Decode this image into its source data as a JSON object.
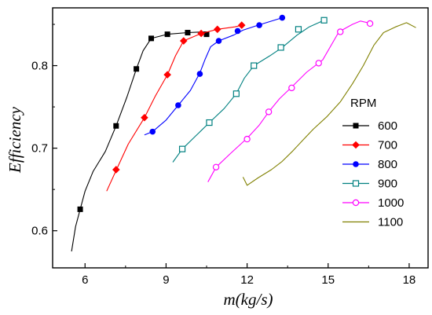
{
  "chart_data": {
    "type": "line",
    "xlabel": "m(kg/s)",
    "ylabel": "Efficiency",
    "xlim": [
      4.8,
      18.7
    ],
    "ylim": [
      0.555,
      0.87
    ],
    "xticks": [
      6,
      9,
      12,
      15,
      18
    ],
    "yticks": [
      0.6,
      0.7,
      0.8
    ],
    "xtick_labels": [
      "6",
      "9",
      "12",
      "15",
      "18"
    ],
    "ytick_labels": [
      "0.6",
      "0.7",
      "0.8"
    ],
    "legend_title": "RPM",
    "legend_position": "right",
    "series": [
      {
        "name": "600",
        "color": "#000000",
        "marker": "filled-square",
        "line": [
          [
            5.5,
            0.575
          ],
          [
            5.65,
            0.605
          ],
          [
            5.82,
            0.626
          ],
          [
            6.0,
            0.648
          ],
          [
            6.3,
            0.672
          ],
          [
            6.75,
            0.696
          ],
          [
            7.15,
            0.727
          ],
          [
            7.55,
            0.762
          ],
          [
            7.9,
            0.796
          ],
          [
            8.15,
            0.818
          ],
          [
            8.45,
            0.833
          ],
          [
            9.05,
            0.838
          ],
          [
            9.8,
            0.84
          ],
          [
            10.5,
            0.841
          ]
        ],
        "markers": [
          [
            5.82,
            0.626
          ],
          [
            7.15,
            0.727
          ],
          [
            7.9,
            0.796
          ],
          [
            8.45,
            0.833
          ],
          [
            9.05,
            0.838
          ],
          [
            9.8,
            0.84
          ],
          [
            10.5,
            0.838
          ]
        ]
      },
      {
        "name": "700",
        "color": "#ff0000",
        "marker": "filled-diamond",
        "line": [
          [
            6.8,
            0.648
          ],
          [
            7.15,
            0.673
          ],
          [
            7.6,
            0.705
          ],
          [
            8.2,
            0.737
          ],
          [
            8.6,
            0.763
          ],
          [
            9.05,
            0.789
          ],
          [
            9.35,
            0.812
          ],
          [
            9.65,
            0.83
          ],
          [
            10.3,
            0.839
          ],
          [
            10.9,
            0.844
          ],
          [
            11.55,
            0.847
          ],
          [
            11.8,
            0.849
          ]
        ],
        "markers": [
          [
            7.15,
            0.674
          ],
          [
            8.2,
            0.737
          ],
          [
            9.05,
            0.789
          ],
          [
            9.65,
            0.83
          ],
          [
            10.3,
            0.839
          ],
          [
            10.9,
            0.844
          ],
          [
            11.8,
            0.849
          ]
        ]
      },
      {
        "name": "800",
        "color": "#0000ff",
        "marker": "filled-circle",
        "line": [
          [
            8.2,
            0.716
          ],
          [
            8.5,
            0.72
          ],
          [
            9.0,
            0.734
          ],
          [
            9.45,
            0.752
          ],
          [
            9.9,
            0.77
          ],
          [
            10.25,
            0.791
          ],
          [
            10.45,
            0.808
          ],
          [
            10.65,
            0.823
          ],
          [
            10.95,
            0.83
          ],
          [
            11.5,
            0.837
          ],
          [
            11.85,
            0.843
          ],
          [
            12.4,
            0.849
          ],
          [
            13.3,
            0.858
          ]
        ],
        "markers": [
          [
            8.5,
            0.72
          ],
          [
            9.45,
            0.752
          ],
          [
            10.25,
            0.79
          ],
          [
            10.95,
            0.83
          ],
          [
            11.65,
            0.842
          ],
          [
            12.45,
            0.849
          ],
          [
            13.3,
            0.858
          ]
        ]
      },
      {
        "name": "900",
        "color": "#008080",
        "marker": "open-square",
        "line": [
          [
            9.25,
            0.683
          ],
          [
            9.6,
            0.699
          ],
          [
            10.1,
            0.715
          ],
          [
            10.6,
            0.731
          ],
          [
            11.15,
            0.748
          ],
          [
            11.6,
            0.766
          ],
          [
            11.9,
            0.785
          ],
          [
            12.25,
            0.8
          ],
          [
            12.85,
            0.812
          ],
          [
            13.3,
            0.822
          ],
          [
            13.85,
            0.837
          ],
          [
            14.3,
            0.847
          ],
          [
            14.85,
            0.855
          ]
        ],
        "markers": [
          [
            9.6,
            0.699
          ],
          [
            10.6,
            0.731
          ],
          [
            11.6,
            0.766
          ],
          [
            12.25,
            0.8
          ],
          [
            13.25,
            0.822
          ],
          [
            13.9,
            0.844
          ],
          [
            14.85,
            0.855
          ]
        ]
      },
      {
        "name": "1000",
        "color": "#ff00ff",
        "marker": "open-circle",
        "line": [
          [
            10.55,
            0.659
          ],
          [
            10.85,
            0.677
          ],
          [
            11.4,
            0.694
          ],
          [
            12.0,
            0.712
          ],
          [
            12.45,
            0.728
          ],
          [
            12.8,
            0.744
          ],
          [
            13.2,
            0.76
          ],
          [
            13.65,
            0.774
          ],
          [
            14.2,
            0.792
          ],
          [
            14.8,
            0.807
          ],
          [
            15.4,
            0.841
          ],
          [
            15.9,
            0.85
          ],
          [
            16.2,
            0.854
          ],
          [
            16.6,
            0.851
          ]
        ],
        "markers": [
          [
            10.85,
            0.677
          ],
          [
            12.0,
            0.711
          ],
          [
            12.8,
            0.744
          ],
          [
            13.65,
            0.773
          ],
          [
            14.65,
            0.803
          ],
          [
            15.45,
            0.841
          ],
          [
            16.55,
            0.851
          ]
        ]
      },
      {
        "name": "1100",
        "color": "#808000",
        "marker": "none",
        "line": [
          [
            11.85,
            0.665
          ],
          [
            12.0,
            0.655
          ],
          [
            12.4,
            0.664
          ],
          [
            12.9,
            0.674
          ],
          [
            13.3,
            0.684
          ],
          [
            13.7,
            0.697
          ],
          [
            14.1,
            0.711
          ],
          [
            14.45,
            0.723
          ],
          [
            14.95,
            0.738
          ],
          [
            15.45,
            0.756
          ],
          [
            15.9,
            0.778
          ],
          [
            16.3,
            0.8
          ],
          [
            16.7,
            0.825
          ],
          [
            17.05,
            0.84
          ],
          [
            17.5,
            0.847
          ],
          [
            17.9,
            0.852
          ],
          [
            18.25,
            0.846
          ]
        ],
        "markers": []
      }
    ]
  }
}
